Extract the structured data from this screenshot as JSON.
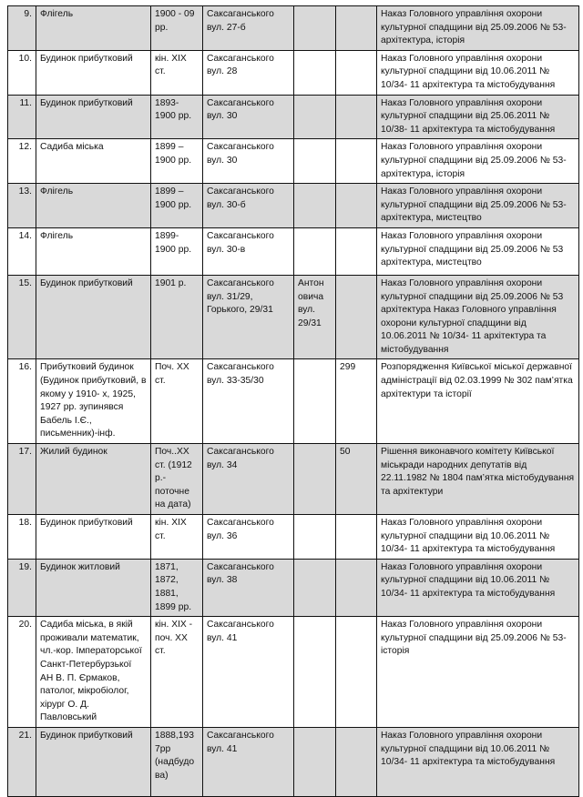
{
  "rows": [
    {
      "no": "9.",
      "name": "Флігель",
      "date": "1900 - 09 рр.",
      "address": "Саксаганського вул. 27-б",
      "extra": "",
      "code": "",
      "decree": "Наказ Головного управління охорони культурної спадщини від 25.09.2006 № 53- архітектура, історія"
    },
    {
      "no": "10.",
      "name": "Будинок прибутковий",
      "date": "кін. XIX ст.",
      "address": "Саксаганського вул. 28",
      "extra": "",
      "code": "",
      "decree": "Наказ  Головного управління охорони культурної спадщини від 10.06.2011 № 10/34- 11 архітектура та містобудування"
    },
    {
      "no": "11.",
      "name": "Будинок прибутковий",
      "date": "1893-1900 рр.",
      "address": "Саксаганського вул. 30",
      "extra": "",
      "code": "",
      "decree": "Наказ  Головного управління охорони культурної спадщини від 25.06.2011 № 10/38- 11 архітектура та містобудування"
    },
    {
      "no": "12.",
      "name": "Садиба міська",
      "date": "1899 – 1900 рр.",
      "address": "Саксаганського вул. 30",
      "extra": "",
      "code": "",
      "decree": "Наказ Головного управління охорони культурної спадщини від 25.09.2006 № 53- архітектура, історія"
    },
    {
      "no": "13.",
      "name": "Флігель",
      "date": "1899 – 1900 рр.",
      "address": "Саксаганського вул. 30-б",
      "extra": "",
      "code": "",
      "decree": "Наказ Головного управління охорони культурної спадщини від 25.09.2006 № 53- архітектура, мистецтво"
    },
    {
      "no": "14.",
      "name": "Флігель",
      "date": "1899-1900 рр.",
      "address": "Саксаганського вул. 30-в",
      "extra": "",
      "code": "",
      "decree": "Наказ Головного управління охорони культурної спадщини від 25.09.2006 № 53 архітектура, мистецтво"
    },
    {
      "no": "15.",
      "name": "Будинок прибутковий",
      "date": "1901 р.",
      "address": "Саксаганського вул. 31/29, Горького, 29/31",
      "extra": "Антон овича вул. 29/31",
      "code": "",
      "decree": "Наказ Головного управління охорони культурної спадщини від 25.09.2006 № 53 архітектура Наказ  Головного управління охорони культурної спадщини від 10.06.2011 № 10/34- 11 архітектура та містобудування"
    },
    {
      "no": "16.",
      "name": "Прибутковий будинок (Будинок прибутковий, в якому у 1910- х, 1925, 1927 рр. зупинявся Бабель І.Є., письменник)-інф.",
      "date": "Поч. XX ст.",
      "address": "Саксаганського вул. 33-35/30",
      "extra": "",
      "code": "299",
      "decree": "Розпорядження Київської міської державної адміністрації від 02.03.1999 № 302 пам’ятка архітектури та історії"
    },
    {
      "no": "17.",
      "name": "Жилий будинок",
      "date": "Поч..XX ст. (1912 р.-поточне на дата)",
      "address": "Саксаганського вул. 34",
      "extra": "",
      "code": "50",
      "decree": "Рішення виконавчого комітету Київської міськради народних депутатів від 22.11.1982 № 1804 пам’ятка містобудування та архітектури"
    },
    {
      "no": "18.",
      "name": "Будинок прибутковий",
      "date": "кін. XIX ст.",
      "address": "Саксаганського вул. 36",
      "extra": "",
      "code": "",
      "decree": "Наказ  Головного управління охорони культурної спадщини від 10.06.2011 № 10/34- 11 архітектура та містобудування"
    },
    {
      "no": "19.",
      "name": "Будинок житловий",
      "date": "1871, 1872, 1881, 1899 рр.",
      "address": "Саксаганського вул. 38",
      "extra": "",
      "code": "",
      "decree": "Наказ  Головного управління охорони культурної спадщини від 10.06.2011 № 10/34- 11 архітектура та містобудування"
    },
    {
      "no": "20.",
      "name": "Садиба міська, в якій проживали математик, чл.-кор. Імператорської Санкт-Петербурзької АН В. П. Єрмаков, патолог, мікробіолог, хірург О. Д. Павловський",
      "date": "кін. XIX - поч. XX ст.",
      "address": "Саксаганського вул. 41",
      "extra": "",
      "code": "",
      "decree": "Наказ Головного управління охорони культурної спадщини від 25.09.2006 № 53- історія"
    },
    {
      "no": "21.",
      "name": "Будинок прибутковий",
      "date": "1888,1937рр (надбудова)",
      "address": "Саксаганського вул. 41",
      "extra": "",
      "code": "",
      "decree": "Наказ  Головного управління охорони культурної спадщини від 10.06.2011 № 10/34- 11 архітектура та містобудування"
    }
  ]
}
